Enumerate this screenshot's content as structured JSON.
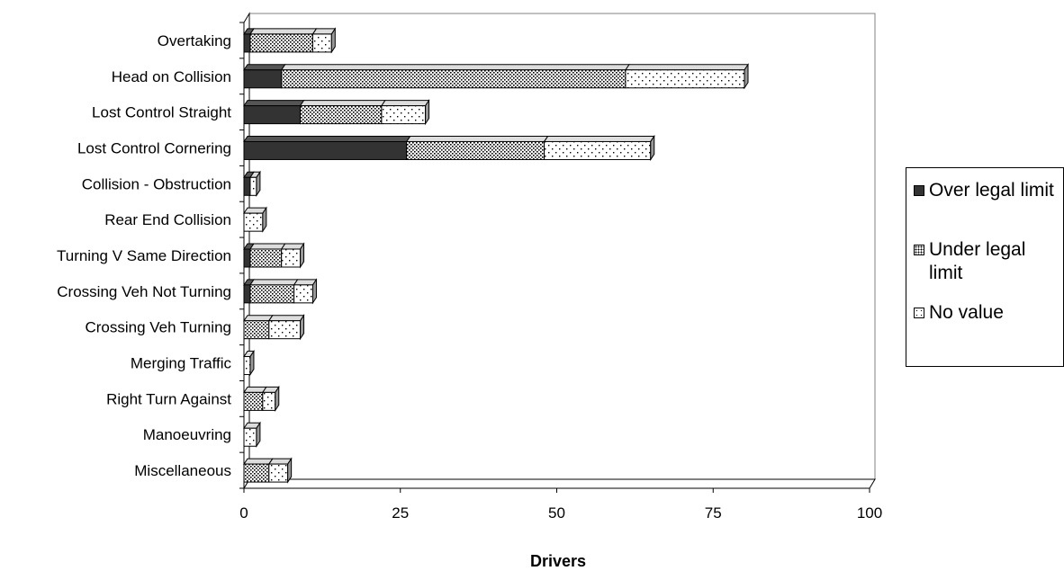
{
  "chart_data": {
    "type": "bar",
    "orientation": "horizontal",
    "stacked": true,
    "three_d": true,
    "xlabel": "Drivers",
    "xlim": [
      0,
      100
    ],
    "xticks": [
      "0",
      "25",
      "50",
      "75",
      "100"
    ],
    "categories": [
      "Overtaking",
      "Head on Collision",
      "Lost Control Straight",
      "Lost Control Cornering",
      "Collision - Obstruction",
      "Rear End Collision",
      "Turning V Same Direction",
      "Crossing Veh Not Turning",
      "Crossing Veh Turning",
      "Merging Traffic",
      "Right Turn Against",
      "Manoeuvring",
      "Miscellaneous"
    ],
    "series": [
      {
        "name": "Over legal limit",
        "color": "#333333",
        "pattern": "solid",
        "values": [
          1,
          6,
          9,
          26,
          1,
          0,
          1,
          1,
          0,
          0,
          0,
          0,
          0
        ]
      },
      {
        "name": "Under legal limit",
        "color": "#bbbbbb",
        "pattern": "dense-dots",
        "values": [
          10,
          55,
          13,
          22,
          0,
          0,
          5,
          7,
          4,
          0,
          3,
          0,
          4
        ]
      },
      {
        "name": "No value",
        "color": "#ffffff",
        "pattern": "sparse-dots",
        "values": [
          3,
          19,
          7,
          17,
          1,
          3,
          3,
          3,
          5,
          1,
          2,
          2,
          3
        ]
      }
    ],
    "legend_position": "right",
    "grid": false
  }
}
